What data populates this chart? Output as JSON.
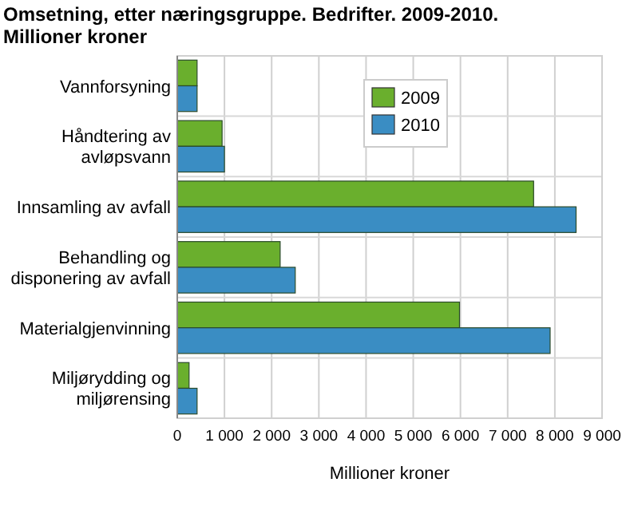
{
  "chart_data": {
    "type": "bar",
    "orientation": "horizontal",
    "title": "Omsetning, etter næringsgruppe. Bedrifter. 2009-2010.",
    "subtitle": "Millioner kroner",
    "xlabel": "Millioner kroner",
    "categories": [
      "Vannforsyning",
      "Håndtering av avløpsvann",
      "Innsamling av avfall",
      "Behandling og disponering av avfall",
      "Materialgjenvinning",
      "Miljørydding og miljørensing"
    ],
    "series": [
      {
        "name": "2009",
        "color": "#6aaf2d",
        "values": [
          420,
          950,
          7550,
          2180,
          5980,
          250
        ]
      },
      {
        "name": "2010",
        "color": "#3a8dc3",
        "values": [
          420,
          1000,
          8450,
          2500,
          7900,
          420
        ]
      }
    ],
    "xlim": [
      0,
      9000
    ],
    "xticks": [
      {
        "value": 0,
        "label": "0"
      },
      {
        "value": 1000,
        "label": "1 000"
      },
      {
        "value": 2000,
        "label": "2 000"
      },
      {
        "value": 3000,
        "label": "3 000"
      },
      {
        "value": 4000,
        "label": "4 000"
      },
      {
        "value": 5000,
        "label": "5 000"
      },
      {
        "value": 6000,
        "label": "6 000"
      },
      {
        "value": 7000,
        "label": "7 000"
      },
      {
        "value": 8000,
        "label": "8 000"
      },
      {
        "value": 9000,
        "label": "9 000"
      }
    ],
    "grid": "x",
    "legend": "top right"
  }
}
